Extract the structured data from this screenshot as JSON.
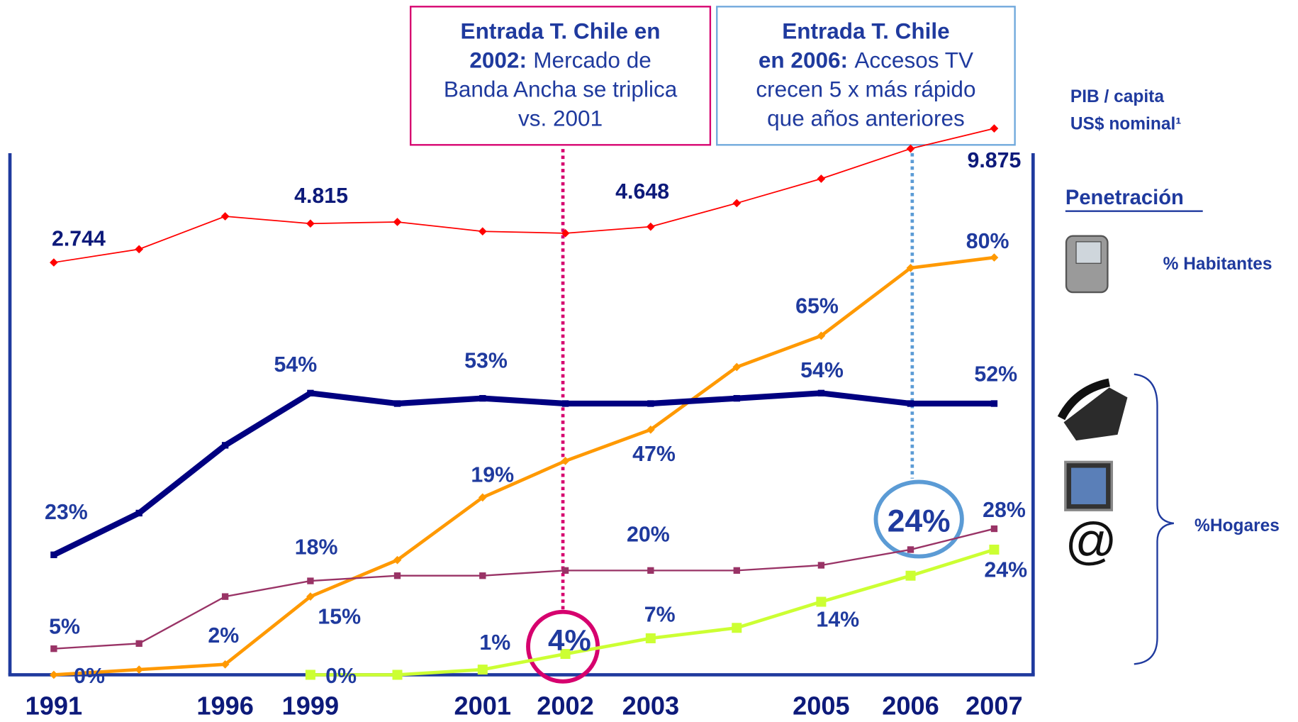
{
  "chart_data": {
    "type": "line",
    "categories": [
      "1991",
      null,
      "1996",
      "1999",
      null,
      "2001",
      "2002",
      "2003",
      null,
      "2005",
      "2006",
      "2007"
    ],
    "ylim": [
      0,
      100
    ],
    "y2lim": [
      -19200,
      8560
    ],
    "series": [
      {
        "name": "PIB / capita",
        "color": "#ff0000",
        "axis": "y2",
        "values": [
          2744,
          3450,
          5200,
          4815,
          4900,
          4400,
          4300,
          4648,
          5900,
          7200,
          8800,
          9875
        ],
        "value_labels": [
          "2.744",
          null,
          null,
          "4.815",
          null,
          null,
          null,
          "4.648",
          null,
          null,
          null,
          "9.875"
        ]
      },
      {
        "name": "% Habitantes",
        "color": "#ff9900",
        "values": [
          0,
          1,
          2,
          15,
          22,
          34,
          41,
          47,
          59,
          65,
          78,
          80
        ],
        "value_labels": [
          "0%",
          null,
          "2%",
          "15%",
          null,
          null,
          null,
          "47%",
          null,
          "65%",
          null,
          "80%"
        ]
      },
      {
        "name": "Telefonía fija",
        "color": "#000080",
        "values": [
          23,
          31,
          44,
          54,
          52,
          53,
          52,
          52,
          53,
          54,
          52,
          52
        ],
        "value_labels": [
          "23%",
          null,
          null,
          "54%",
          null,
          "53%",
          null,
          null,
          null,
          "54%",
          null,
          "52%"
        ]
      },
      {
        "name": "TV",
        "color": "#993366",
        "values": [
          5,
          6,
          15,
          18,
          19,
          19,
          20,
          20,
          20,
          21,
          24,
          28
        ],
        "value_labels": [
          "5%",
          null,
          null,
          "18%",
          null,
          "19%",
          null,
          "20%",
          null,
          null,
          "24%",
          "28%"
        ]
      },
      {
        "name": "Banda Ancha",
        "color": "#ccff33",
        "values": [
          null,
          null,
          null,
          0,
          0,
          1,
          4,
          7,
          9,
          14,
          19,
          24
        ],
        "value_labels": [
          null,
          null,
          null,
          "0%",
          null,
          "1%",
          "4%",
          "7%",
          null,
          "14%",
          null,
          "24%"
        ]
      }
    ],
    "annotations": [
      {
        "lines": [
          {
            "bold": "Entrada T. Chile en"
          },
          {
            "bold": "2002:",
            "text": "Mercado de"
          },
          {
            "text": "Banda Ancha se triplica"
          },
          {
            "text": "vs. 2001"
          }
        ]
      },
      {
        "lines": [
          {
            "bold": "Entrada T. Chile"
          },
          {
            "bold": "en 2006:",
            "text": "Accesos TV"
          },
          {
            "text": "crecen 5 x más rápido"
          },
          {
            "text": "que años anteriores"
          }
        ]
      }
    ],
    "side_labels": {
      "pib": "PIB / capita",
      "pib_unit": "US$ nominal¹",
      "penetration": "Penetración",
      "habitantes": "% Habitantes",
      "hogares": "%Hogares",
      "internet": "@"
    }
  }
}
